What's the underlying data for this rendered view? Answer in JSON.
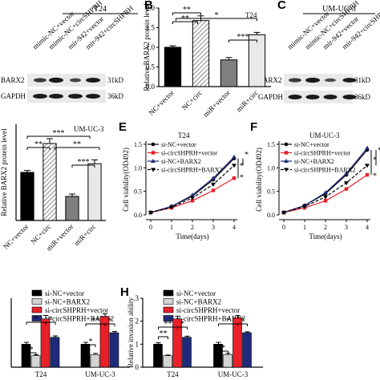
{
  "panel_letters": {
    "B": "B",
    "C": "C",
    "E": "E",
    "F": "F",
    "H": "H"
  },
  "blot_t24": {
    "cell_line": "T24",
    "lanes": [
      "mimic-NC+vector",
      "mimic-NC+circSHPRH",
      "mir-942+vector",
      "mir-942+circSHPRH"
    ],
    "rows": [
      {
        "name": "BARX2",
        "size": "31kD"
      },
      {
        "name": "GAPDH",
        "size": "36kD"
      }
    ]
  },
  "blot_umuc3": {
    "cell_line": "UM-UC-3",
    "lanes": [
      "mimic-NC+vector",
      "mimic-NC+circSHPRH",
      "mir-942+vector",
      "mir-942+circSHPRH"
    ],
    "rows": [
      {
        "name": "BARX2",
        "size": "31kD"
      },
      {
        "name": "GAPDH",
        "size": "36kD"
      }
    ]
  },
  "colors": {
    "black": "#000000",
    "gray": "#7f7f7f",
    "red": "#e8202a",
    "navy": "#1f2a7a",
    "light_gray": "#d4d4d4",
    "pale_gray": "#e8e8e8"
  },
  "chart_data": [
    {
      "id": "B",
      "type": "bar",
      "title": "T24",
      "ylabel": "Relative BARX2 protein level",
      "ylim": [
        0,
        2.0
      ],
      "yticks": [
        0.0,
        0.5,
        1.0,
        1.5,
        2.0
      ],
      "tick_labels": [
        "0.0",
        "0.5",
        "1.0",
        "1.5",
        "2.0"
      ],
      "categories": [
        "NC+vector",
        "NC+circ",
        "miR+vector",
        "miR+circ"
      ],
      "values": [
        1.0,
        1.68,
        0.68,
        1.32
      ],
      "errors": [
        0.04,
        0.12,
        0.06,
        0.06
      ],
      "significance": [
        "**",
        "**",
        "*",
        "***"
      ]
    },
    {
      "id": "D",
      "type": "bar",
      "title": "UM-UC-3",
      "ylabel": "Relative BARX2 protein level",
      "ylim": [
        0,
        2.0
      ],
      "categories": [
        "NC+vector",
        "NC+circ",
        "miR+vector",
        "miR+circ"
      ],
      "values": [
        1.0,
        1.6,
        0.5,
        1.18
      ],
      "errors": [
        0.04,
        0.1,
        0.05,
        0.08
      ],
      "significance": [
        "***",
        "**",
        "**",
        "***"
      ]
    },
    {
      "id": "E",
      "type": "line",
      "title": "T24",
      "xlabel": "Time(days)",
      "ylabel": "Cell viability(OD492)",
      "x": [
        0,
        1,
        2,
        3,
        4
      ],
      "xticks": [
        "0",
        "1",
        "2",
        "3",
        "4"
      ],
      "ylim": [
        0.0,
        1.5
      ],
      "yticks": [
        "0.0",
        "0.5",
        "1.0",
        "1.5"
      ],
      "series": [
        {
          "name": "si-NC+vector",
          "values": [
            0.05,
            0.18,
            0.4,
            0.75,
            1.2
          ]
        },
        {
          "name": "si-circSHPRH+vector",
          "values": [
            0.05,
            0.15,
            0.3,
            0.52,
            0.78
          ]
        },
        {
          "name": "si-NC+BARX2",
          "values": [
            0.05,
            0.18,
            0.42,
            0.78,
            1.23
          ]
        },
        {
          "name": "si-circSHPRH+BARX2",
          "values": [
            0.05,
            0.16,
            0.36,
            0.65,
            1.05
          ]
        }
      ],
      "significance": [
        "*",
        "*",
        "*"
      ]
    },
    {
      "id": "F",
      "type": "line",
      "title": "UM-UC-3",
      "xlabel": "Time(days)",
      "ylabel": "Cell viability(OD492)",
      "x": [
        0,
        1,
        2,
        3,
        4
      ],
      "xticks": [
        "0",
        "1",
        "2",
        "3",
        "4"
      ],
      "ylim": [
        0.0,
        1.5
      ],
      "yticks": [
        "0.0",
        "0.5",
        "1.0",
        "1.5"
      ],
      "series": [
        {
          "name": "si-NC+vector",
          "values": [
            0.05,
            0.2,
            0.45,
            0.85,
            1.38
          ]
        },
        {
          "name": "si-circSHPRH+vector",
          "values": [
            0.05,
            0.15,
            0.3,
            0.55,
            0.85
          ]
        },
        {
          "name": "si-NC+BARX2",
          "values": [
            0.05,
            0.2,
            0.47,
            0.88,
            1.42
          ]
        },
        {
          "name": "si-circSHPRH+BARX2",
          "values": [
            0.05,
            0.18,
            0.38,
            0.68,
            1.05
          ]
        }
      ],
      "significance": [
        "*",
        "*",
        "*"
      ]
    },
    {
      "id": "G",
      "type": "bar",
      "ylim": [
        0,
        3
      ],
      "categories": [
        "T24",
        "UM-UC-3"
      ],
      "series": [
        {
          "name": "si-NC+vector",
          "values": [
            1.0,
            1.0
          ],
          "errors": [
            0.08,
            0.08
          ]
        },
        {
          "name": "si-NC+BARX2",
          "values": [
            0.5,
            0.55
          ],
          "errors": [
            0.04,
            0.05
          ]
        },
        {
          "name": "si-circSHPRH+vector",
          "values": [
            2.1,
            2.2
          ],
          "errors": [
            0.15,
            0.12
          ]
        },
        {
          "name": "si-circSHPRH+BARX2",
          "values": [
            1.3,
            1.5
          ],
          "errors": [
            0.06,
            0.05
          ]
        }
      ],
      "significance": [
        "*",
        "*",
        "*",
        "*",
        "**",
        "*"
      ]
    },
    {
      "id": "H",
      "type": "bar",
      "ylabel": "Relative invasion ability",
      "ylim": [
        0,
        3
      ],
      "yticks": [
        "0",
        "1",
        "2",
        "3"
      ],
      "categories": [
        "T24",
        "UM-UC-3"
      ],
      "series": [
        {
          "name": "si-NC+vector",
          "values": [
            1.0,
            1.0
          ],
          "errors": [
            0.06,
            0.08
          ]
        },
        {
          "name": "si-NC+BARX2",
          "values": [
            0.5,
            0.55
          ],
          "errors": [
            0.03,
            0.05
          ]
        },
        {
          "name": "si-circSHPRH+vector",
          "values": [
            2.1,
            2.15
          ],
          "errors": [
            0.12,
            0.1
          ]
        },
        {
          "name": "si-circSHPRH+BARX2",
          "values": [
            1.3,
            1.5
          ],
          "errors": [
            0.05,
            0.04
          ]
        }
      ],
      "significance": [
        "**",
        "**",
        "*",
        "*",
        "*",
        "*"
      ]
    }
  ]
}
